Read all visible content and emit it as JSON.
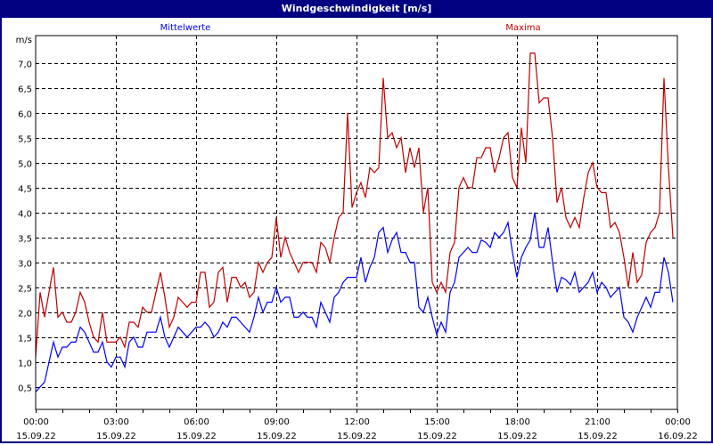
{
  "window": {
    "title": "Windgeschwindigkeit [m/s]"
  },
  "chart_data": {
    "type": "line",
    "title": "Windgeschwindigkeit [m/s]",
    "ylabel": "m/s",
    "xlabel": "",
    "ylim": [
      0.05,
      7.55
    ],
    "xlim": [
      "15.09.22 00:00",
      "16.09.22 00:00"
    ],
    "grid": true,
    "yticks": [
      "0,5",
      "1,0",
      "1,5",
      "2,0",
      "2,5",
      "3,0",
      "3,5",
      "4,0",
      "4,5",
      "5,0",
      "5,5",
      "6,0",
      "6,5",
      "7,0"
    ],
    "ytick_values": [
      0.5,
      1.0,
      1.5,
      2.0,
      2.5,
      3.0,
      3.5,
      4.0,
      4.5,
      5.0,
      5.5,
      6.0,
      6.5,
      7.0
    ],
    "xticks": [
      {
        "time": "00:00",
        "date": "15.09.22",
        "hours": 0
      },
      {
        "time": "03:00",
        "date": "15.09.22",
        "hours": 3
      },
      {
        "time": "06:00",
        "date": "15.09.22",
        "hours": 6
      },
      {
        "time": "09:00",
        "date": "15.09.22",
        "hours": 9
      },
      {
        "time": "12:00",
        "date": "15.09.22",
        "hours": 12
      },
      {
        "time": "15:00",
        "date": "15.09.22",
        "hours": 15
      },
      {
        "time": "18:00",
        "date": "15.09.22",
        "hours": 18
      },
      {
        "time": "21:00",
        "date": "15.09.22",
        "hours": 21
      },
      {
        "time": "00:00",
        "date": "16.09.22",
        "hours": 24
      }
    ],
    "x": [
      "00:00",
      "00:10",
      "00:20",
      "00:30",
      "00:40",
      "00:50",
      "01:00",
      "01:10",
      "01:20",
      "01:30",
      "01:40",
      "01:50",
      "02:00",
      "02:10",
      "02:20",
      "02:30",
      "02:40",
      "02:50",
      "03:00",
      "03:10",
      "03:20",
      "03:30",
      "03:40",
      "03:50",
      "04:00",
      "04:10",
      "04:20",
      "04:30",
      "04:40",
      "04:50",
      "05:00",
      "05:10",
      "05:20",
      "05:30",
      "05:40",
      "05:50",
      "06:00",
      "06:10",
      "06:20",
      "06:30",
      "06:40",
      "06:50",
      "07:00",
      "07:10",
      "07:20",
      "07:30",
      "07:40",
      "07:50",
      "08:00",
      "08:10",
      "08:20",
      "08:30",
      "08:40",
      "08:50",
      "09:00",
      "09:10",
      "09:20",
      "09:30",
      "09:40",
      "09:50",
      "10:00",
      "10:10",
      "10:20",
      "10:30",
      "10:40",
      "10:50",
      "11:00",
      "11:10",
      "11:20",
      "11:30",
      "11:40",
      "11:50",
      "12:00",
      "12:10",
      "12:20",
      "12:30",
      "12:40",
      "12:50",
      "13:00",
      "13:10",
      "13:20",
      "13:30",
      "13:40",
      "13:50",
      "14:00",
      "14:10",
      "14:20",
      "14:30",
      "14:40",
      "14:50",
      "15:00",
      "15:10",
      "15:20",
      "15:30",
      "15:40",
      "15:50",
      "16:00",
      "16:10",
      "16:20",
      "16:30",
      "16:40",
      "16:50",
      "17:00",
      "17:10",
      "17:20",
      "17:30",
      "17:40",
      "17:50",
      "18:00",
      "18:10",
      "18:20",
      "18:30",
      "18:40",
      "18:50",
      "19:00",
      "19:10",
      "19:20",
      "19:30",
      "19:40",
      "19:50",
      "20:00",
      "20:10",
      "20:20",
      "20:30",
      "20:40",
      "20:50",
      "21:00",
      "21:10",
      "21:20",
      "21:30",
      "21:40",
      "21:50",
      "22:00",
      "22:10",
      "22:20",
      "22:30",
      "22:40",
      "22:50",
      "23:00",
      "23:10",
      "23:20",
      "23:30",
      "23:40",
      "23:50"
    ],
    "series": [
      {
        "name": "Mittelwerte",
        "color": "#0000ff",
        "values": [
          0.4,
          0.5,
          0.6,
          1.0,
          1.4,
          1.1,
          1.3,
          1.3,
          1.4,
          1.4,
          1.7,
          1.6,
          1.4,
          1.2,
          1.2,
          1.4,
          1.0,
          0.9,
          1.1,
          1.1,
          0.9,
          1.4,
          1.5,
          1.3,
          1.3,
          1.6,
          1.6,
          1.6,
          1.9,
          1.5,
          1.3,
          1.5,
          1.7,
          1.6,
          1.5,
          1.6,
          1.7,
          1.7,
          1.8,
          1.7,
          1.5,
          1.6,
          1.8,
          1.7,
          1.9,
          1.9,
          1.8,
          1.7,
          1.6,
          1.9,
          2.3,
          2.0,
          2.2,
          2.2,
          2.5,
          2.2,
          2.3,
          2.3,
          1.9,
          1.9,
          2.0,
          1.9,
          1.9,
          1.7,
          2.2,
          2.0,
          1.8,
          2.3,
          2.4,
          2.6,
          2.7,
          2.7,
          2.7,
          3.1,
          2.6,
          2.9,
          3.1,
          3.6,
          3.7,
          3.2,
          3.45,
          3.6,
          3.2,
          3.2,
          3.0,
          3.0,
          2.1,
          2.0,
          2.3,
          1.9,
          1.55,
          1.8,
          1.6,
          2.4,
          2.6,
          3.1,
          3.2,
          3.3,
          3.2,
          3.2,
          3.45,
          3.4,
          3.3,
          3.6,
          3.5,
          3.6,
          3.8,
          3.2,
          2.7,
          3.1,
          3.3,
          3.45,
          4.0,
          3.3,
          3.3,
          3.7,
          3.0,
          2.4,
          2.7,
          2.65,
          2.55,
          2.8,
          2.4,
          2.5,
          2.6,
          2.8,
          2.4,
          2.6,
          2.5,
          2.3,
          2.4,
          2.5,
          1.9,
          1.8,
          1.6,
          1.9,
          2.1,
          2.3,
          2.1,
          2.4,
          2.4,
          3.1,
          2.8,
          2.2
        ]
      },
      {
        "name": "Maxima",
        "color": "#c00000",
        "values": [
          1.1,
          2.4,
          1.9,
          2.4,
          2.9,
          1.9,
          2.0,
          1.8,
          1.8,
          2.0,
          2.4,
          2.2,
          1.8,
          1.5,
          1.4,
          2.0,
          1.4,
          1.4,
          1.4,
          1.5,
          1.3,
          1.8,
          1.8,
          1.7,
          2.1,
          2.0,
          2.0,
          2.4,
          2.8,
          2.3,
          1.7,
          1.9,
          2.3,
          2.2,
          2.1,
          2.2,
          2.2,
          2.8,
          2.8,
          2.1,
          2.2,
          2.8,
          2.9,
          2.2,
          2.7,
          2.7,
          2.5,
          2.6,
          2.3,
          2.4,
          3.0,
          2.8,
          3.0,
          3.1,
          3.9,
          3.1,
          3.5,
          3.2,
          3.0,
          2.8,
          3.0,
          3.0,
          3.0,
          2.8,
          3.4,
          3.3,
          3.0,
          3.5,
          3.9,
          4.0,
          6.0,
          4.1,
          4.4,
          4.6,
          4.3,
          4.9,
          4.8,
          4.9,
          6.7,
          5.5,
          5.6,
          5.3,
          5.5,
          4.8,
          5.3,
          4.9,
          5.3,
          4.0,
          4.5,
          2.6,
          2.4,
          2.6,
          2.4,
          3.2,
          3.4,
          4.5,
          4.7,
          4.5,
          4.5,
          5.1,
          5.1,
          5.3,
          5.3,
          4.8,
          5.1,
          5.5,
          5.6,
          4.7,
          4.5,
          5.7,
          5.0,
          7.2,
          7.2,
          6.2,
          6.3,
          6.3,
          5.5,
          4.2,
          4.5,
          3.9,
          3.7,
          3.9,
          3.7,
          4.3,
          4.8,
          5.0,
          4.5,
          4.4,
          4.4,
          3.7,
          3.8,
          3.6,
          3.1,
          2.5,
          3.2,
          2.6,
          2.75,
          3.4,
          3.6,
          3.7,
          4.0,
          6.7,
          4.9,
          3.5
        ]
      }
    ]
  }
}
